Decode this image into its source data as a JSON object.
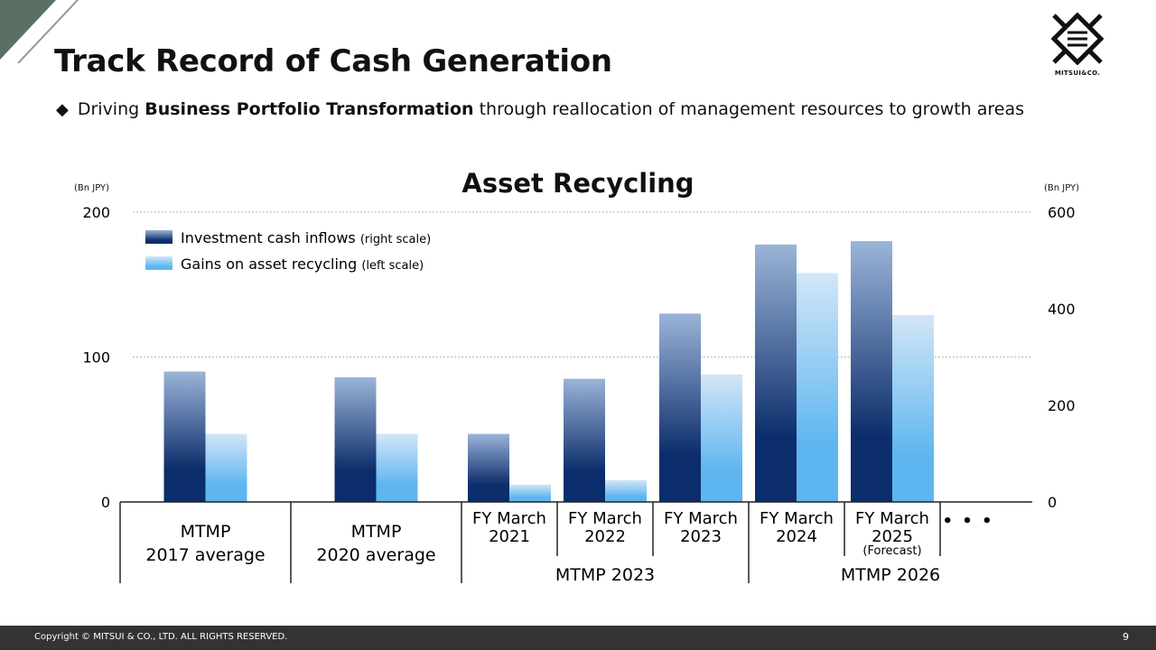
{
  "page": {
    "title": "Track Record of Cash Generation",
    "subtitle_prefix": "Driving ",
    "subtitle_bold": "Business Portfolio Transformation",
    "subtitle_suffix": " through reallocation of management resources to growth areas",
    "logo_text": "MITSUI&CO.",
    "footer_copyright": "Copyright © MITSUI & CO., LTD. ALL RIGHTS RESERVED.",
    "page_number": "9"
  },
  "chart_data": {
    "type": "bar",
    "title": "Asset Recycling",
    "left_axis": {
      "unit": "(Bn JPY)",
      "range": [
        0,
        200
      ],
      "ticks": [
        0,
        100,
        200
      ]
    },
    "right_axis": {
      "unit": "(Bn JPY)",
      "range": [
        0,
        600
      ],
      "ticks": [
        0,
        200,
        400,
        600
      ]
    },
    "categories": [
      {
        "label": [
          "MTMP",
          "2017 average"
        ]
      },
      {
        "label": [
          "MTMP",
          "2020 average"
        ]
      },
      {
        "label": [
          "FY March",
          "2021"
        ]
      },
      {
        "label": [
          "FY March",
          "2022"
        ]
      },
      {
        "label": [
          "FY March",
          "2023"
        ]
      },
      {
        "label": [
          "FY March",
          "2024"
        ]
      },
      {
        "label": [
          "FY March",
          "2025"
        ],
        "note": "(Forecast)"
      },
      {
        "label": [
          "• • •"
        ]
      }
    ],
    "groups": [
      {
        "label": "MTMP 2023",
        "from": 2,
        "to": 4
      },
      {
        "label": "MTMP 2026",
        "from": 5,
        "to": 7
      }
    ],
    "series": [
      {
        "name": "Investment cash inflows",
        "scale_note": "(right scale)",
        "axis": "right",
        "color_top": "#9bb4d8",
        "color_bottom": "#0c2d6b",
        "values": [
          270,
          258,
          141,
          255,
          390,
          533,
          540,
          null
        ]
      },
      {
        "name": "Gains on asset recycling",
        "scale_note": "(left scale)",
        "axis": "left",
        "color_top": "#d3e6f7",
        "color_bottom": "#5eb6f0",
        "values": [
          47,
          47,
          12,
          15,
          88,
          158,
          129,
          null
        ]
      }
    ],
    "grid": true,
    "legend": "top-left"
  }
}
